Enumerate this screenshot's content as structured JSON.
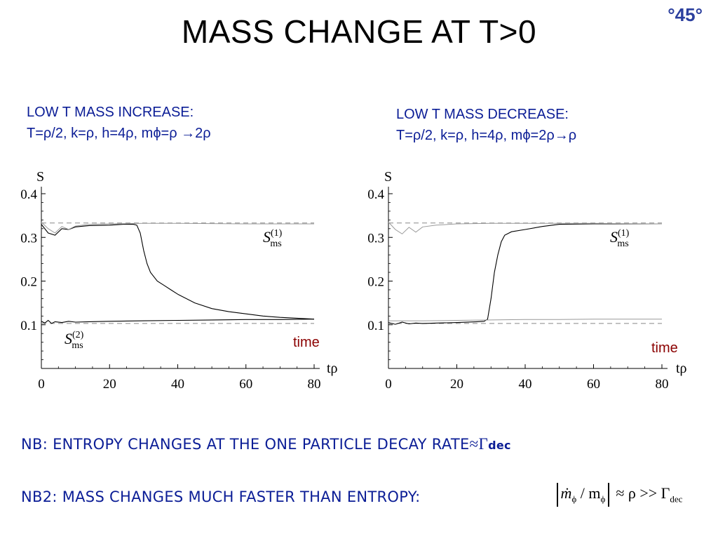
{
  "slide": {
    "title": "MASS CHANGE AT T>0",
    "number": "°45°"
  },
  "left_panel": {
    "heading": "LOW T MASS INCREASE:",
    "params": "T=ρ/2, k=ρ, h=4ρ, mϕ=ρ →2ρ"
  },
  "right_panel": {
    "heading": "LOW T MASS DECREASE:",
    "params": "T=ρ/2, k=ρ, h=4ρ, mϕ=2ρ→ρ"
  },
  "notes": {
    "nb1_text": "NB: ENTROPY CHANGES AT THE ONE PARTICLE DECAY RATE",
    "nb1_sym": "≈Γ",
    "nb1_sub": "dec",
    "nb2_text": "NB2: MASS CHANGES MUCH FASTER THAN ENTROPY:",
    "nb2_m": "ṁ",
    "nb2_phi": "ϕ",
    "nb2_slash": " / m",
    "nb2_rel": "≈ ρ >> Γ",
    "nb2_dec": "dec"
  },
  "colors": {
    "text_blue": "#0b1d96",
    "annotation_red": "#8b0000",
    "title": "#000000"
  },
  "chart_data": [
    {
      "type": "line",
      "xlabel": "tρ",
      "ylabel": "S",
      "xlim": [
        0,
        80
      ],
      "ylim": [
        0,
        0.4
      ],
      "xticks": [
        0,
        20,
        40,
        60,
        80
      ],
      "yticks": [
        0.1,
        0.2,
        0.3,
        0.4
      ],
      "annotation": "time",
      "reference_lines": [
        0.333,
        0.103
      ],
      "series": [
        {
          "name": "S_ms^(1)",
          "label_main": "S",
          "label_sub": "ms",
          "label_sup": "(1)",
          "color": "#000000",
          "x": [
            0,
            2,
            4,
            6,
            8,
            10,
            14,
            20,
            24,
            27,
            28,
            29,
            30,
            31,
            32,
            34,
            36,
            38,
            40,
            45,
            50,
            55,
            60,
            65,
            70,
            75,
            80
          ],
          "y": [
            0.33,
            0.31,
            0.305,
            0.32,
            0.318,
            0.324,
            0.327,
            0.328,
            0.33,
            0.33,
            0.328,
            0.31,
            0.27,
            0.24,
            0.22,
            0.2,
            0.19,
            0.18,
            0.17,
            0.15,
            0.137,
            0.13,
            0.125,
            0.12,
            0.117,
            0.115,
            0.113
          ]
        },
        {
          "name": "S_ms^(1) reference",
          "color": "#999999",
          "x": [
            0,
            2,
            4,
            6,
            8,
            10,
            14,
            20,
            30,
            40,
            60,
            80
          ],
          "y": [
            0.335,
            0.32,
            0.31,
            0.325,
            0.318,
            0.326,
            0.33,
            0.331,
            0.332,
            0.332,
            0.331,
            0.331
          ]
        },
        {
          "name": "S_ms^(2)",
          "label_main": "S",
          "label_sub": "ms",
          "label_sup": "(2)",
          "color": "#000000",
          "x": [
            0,
            1,
            2,
            3,
            4,
            6,
            8,
            10,
            14,
            20,
            30,
            40,
            50,
            60,
            70,
            80
          ],
          "y": [
            0.108,
            0.104,
            0.11,
            0.103,
            0.107,
            0.105,
            0.108,
            0.106,
            0.107,
            0.108,
            0.109,
            0.11,
            0.111,
            0.112,
            0.112,
            0.113
          ]
        }
      ]
    },
    {
      "type": "line",
      "xlabel": "tρ",
      "ylabel": "S",
      "xlim": [
        0,
        80
      ],
      "ylim": [
        0,
        0.4
      ],
      "xticks": [
        0,
        20,
        40,
        60,
        80
      ],
      "yticks": [
        0.1,
        0.2,
        0.3,
        0.4
      ],
      "annotation": "time",
      "reference_lines": [
        0.333,
        0.103
      ],
      "series": [
        {
          "name": "S_ms^(1)",
          "label_main": "S",
          "label_sub": "ms",
          "label_sup": "(1)",
          "color": "#000000",
          "x": [
            0,
            2,
            4,
            6,
            8,
            10,
            14,
            20,
            26,
            28,
            29,
            30,
            31,
            32,
            33,
            34,
            36,
            40,
            45,
            50,
            60,
            70,
            80
          ],
          "y": [
            0.105,
            0.101,
            0.106,
            0.102,
            0.104,
            0.103,
            0.104,
            0.105,
            0.107,
            0.108,
            0.113,
            0.16,
            0.22,
            0.26,
            0.29,
            0.305,
            0.313,
            0.318,
            0.325,
            0.33,
            0.331,
            0.331,
            0.331
          ]
        },
        {
          "name": "S_ms^(1) reference",
          "color": "#999999",
          "x": [
            0,
            2,
            4,
            6,
            8,
            10,
            14,
            20,
            30,
            40,
            60,
            80
          ],
          "y": [
            0.335,
            0.318,
            0.308,
            0.323,
            0.312,
            0.324,
            0.328,
            0.331,
            0.332,
            0.332,
            0.332,
            0.331
          ]
        },
        {
          "name": "S_ms^(2) reference",
          "color": "#999999",
          "x": [
            0,
            10,
            20,
            30,
            40,
            50,
            60,
            70,
            80
          ],
          "y": [
            0.109,
            0.109,
            0.11,
            0.111,
            0.112,
            0.112,
            0.113,
            0.113,
            0.113
          ]
        }
      ]
    }
  ]
}
